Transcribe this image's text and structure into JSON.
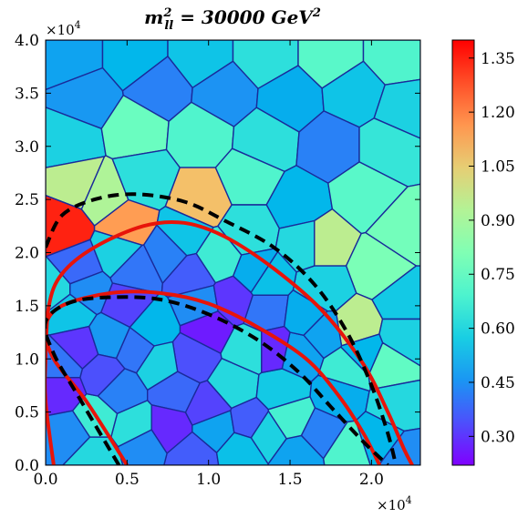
{
  "chart_data": {
    "type": "heatmap",
    "title": "m_ll^2 = 30000 GeV^2",
    "title_parts": {
      "base": "m",
      "sup": "2",
      "sub": "ll",
      "rest": " = 30000 ",
      "unit": "GeV",
      "unit_sup": "2"
    },
    "x_axis": {
      "range": [
        0.0,
        2.3
      ],
      "ticks": [
        0.0,
        0.5,
        1.0,
        1.5,
        2.0
      ],
      "tick_labels": [
        "0.0",
        "0.5",
        "1.0",
        "1.5",
        "2.0"
      ],
      "multiplier": "×10",
      "multiplier_exp": "4"
    },
    "y_axis": {
      "range": [
        0.0,
        4.0
      ],
      "ticks": [
        0.0,
        0.5,
        1.0,
        1.5,
        2.0,
        2.5,
        3.0,
        3.5,
        4.0
      ],
      "tick_labels": [
        "0.0",
        "0.5",
        "1.0",
        "1.5",
        "2.0",
        "2.5",
        "3.0",
        "3.5",
        "4.0"
      ],
      "multiplier": "×10",
      "multiplier_exp": "4"
    },
    "colorbar": {
      "range": [
        0.22,
        1.4
      ],
      "ticks": [
        0.3,
        0.45,
        0.6,
        0.75,
        0.9,
        1.05,
        1.2,
        1.35
      ],
      "tick_labels": [
        "0.30",
        "0.45",
        "0.60",
        "0.75",
        "0.90",
        "1.05",
        "1.20",
        "1.35"
      ],
      "colormap": "rainbow"
    },
    "cells": [
      {
        "x": 0.15,
        "y": 3.85,
        "v": 0.48
      },
      {
        "x": 0.55,
        "y": 3.85,
        "v": 0.52
      },
      {
        "x": 0.95,
        "y": 3.85,
        "v": 0.55
      },
      {
        "x": 1.35,
        "y": 3.85,
        "v": 0.62
      },
      {
        "x": 1.75,
        "y": 3.85,
        "v": 0.72
      },
      {
        "x": 2.15,
        "y": 3.85,
        "v": 0.7
      },
      {
        "x": 0.25,
        "y": 3.45,
        "v": 0.46
      },
      {
        "x": 0.7,
        "y": 3.55,
        "v": 0.42
      },
      {
        "x": 1.1,
        "y": 3.5,
        "v": 0.45
      },
      {
        "x": 1.5,
        "y": 3.45,
        "v": 0.5
      },
      {
        "x": 1.9,
        "y": 3.5,
        "v": 0.55
      },
      {
        "x": 2.2,
        "y": 3.35,
        "v": 0.58
      },
      {
        "x": 0.15,
        "y": 3.05,
        "v": 0.58
      },
      {
        "x": 0.55,
        "y": 3.15,
        "v": 0.76
      },
      {
        "x": 0.95,
        "y": 3.1,
        "v": 0.7
      },
      {
        "x": 1.35,
        "y": 3.05,
        "v": 0.62
      },
      {
        "x": 1.75,
        "y": 3.0,
        "v": 0.42
      },
      {
        "x": 2.1,
        "y": 3.0,
        "v": 0.64
      },
      {
        "x": 0.2,
        "y": 2.65,
        "v": 0.95
      },
      {
        "x": 0.6,
        "y": 2.7,
        "v": 0.62
      },
      {
        "x": 0.95,
        "y": 2.5,
        "v": 1.08
      },
      {
        "x": 1.25,
        "y": 2.7,
        "v": 0.7
      },
      {
        "x": 1.55,
        "y": 2.45,
        "v": 0.52
      },
      {
        "x": 1.95,
        "y": 2.55,
        "v": 0.72
      },
      {
        "x": 2.2,
        "y": 2.2,
        "v": 0.78
      },
      {
        "x": 0.1,
        "y": 2.25,
        "v": 1.35
      },
      {
        "x": 0.5,
        "y": 2.25,
        "v": 1.15
      },
      {
        "x": 0.85,
        "y": 2.15,
        "v": 0.55
      },
      {
        "x": 1.25,
        "y": 2.2,
        "v": 0.62
      },
      {
        "x": 1.6,
        "y": 2.1,
        "v": 0.6
      },
      {
        "x": 1.7,
        "y": 2.1,
        "v": 0.95
      },
      {
        "x": 2.05,
        "y": 1.85,
        "v": 0.8
      },
      {
        "x": 0.2,
        "y": 1.85,
        "v": 0.38
      },
      {
        "x": 0.55,
        "y": 1.85,
        "v": 0.4
      },
      {
        "x": 0.9,
        "y": 1.8,
        "v": 0.36
      },
      {
        "x": 1.3,
        "y": 1.8,
        "v": 0.5
      },
      {
        "x": 1.7,
        "y": 1.65,
        "v": 0.58
      },
      {
        "x": 2.2,
        "y": 1.55,
        "v": 0.56
      },
      {
        "x": 0.15,
        "y": 1.45,
        "v": 0.55
      },
      {
        "x": 0.5,
        "y": 1.5,
        "v": 0.32
      },
      {
        "x": 0.95,
        "y": 1.5,
        "v": 0.44
      },
      {
        "x": 1.35,
        "y": 1.45,
        "v": 0.4
      },
      {
        "x": 1.9,
        "y": 1.3,
        "v": 0.95
      },
      {
        "x": 2.2,
        "y": 1.2,
        "v": 0.58
      },
      {
        "x": 0.2,
        "y": 1.1,
        "v": 0.3
      },
      {
        "x": 0.55,
        "y": 1.1,
        "v": 0.4
      },
      {
        "x": 0.9,
        "y": 1.0,
        "v": 0.34
      },
      {
        "x": 1.25,
        "y": 1.1,
        "v": 0.62
      },
      {
        "x": 1.55,
        "y": 1.05,
        "v": 0.48
      },
      {
        "x": 2.1,
        "y": 0.95,
        "v": 0.74
      },
      {
        "x": 0.1,
        "y": 0.7,
        "v": 0.28
      },
      {
        "x": 0.45,
        "y": 0.7,
        "v": 0.42
      },
      {
        "x": 0.8,
        "y": 0.7,
        "v": 0.38
      },
      {
        "x": 1.15,
        "y": 0.75,
        "v": 0.6
      },
      {
        "x": 1.45,
        "y": 0.7,
        "v": 0.56
      },
      {
        "x": 1.8,
        "y": 0.65,
        "v": 0.5
      },
      {
        "x": 2.15,
        "y": 0.55,
        "v": 0.6
      },
      {
        "x": 0.15,
        "y": 0.3,
        "v": 0.44
      },
      {
        "x": 0.55,
        "y": 0.35,
        "v": 0.62
      },
      {
        "x": 0.75,
        "y": 0.35,
        "v": 0.28
      },
      {
        "x": 1.05,
        "y": 0.35,
        "v": 0.48
      },
      {
        "x": 1.35,
        "y": 0.3,
        "v": 0.58
      },
      {
        "x": 1.7,
        "y": 0.3,
        "v": 0.42
      },
      {
        "x": 2.05,
        "y": 0.25,
        "v": 0.52
      },
      {
        "x": 0.3,
        "y": 0.08,
        "v": 0.6
      },
      {
        "x": 0.9,
        "y": 0.08,
        "v": 0.36
      },
      {
        "x": 1.55,
        "y": 0.08,
        "v": 0.48
      },
      {
        "x": 2.2,
        "y": 0.08,
        "v": 0.44
      },
      {
        "x": 0.35,
        "y": 2.55,
        "v": 0.92
      },
      {
        "x": 1.0,
        "y": 1.3,
        "v": 0.26
      },
      {
        "x": 1.25,
        "y": 0.4,
        "v": 0.36
      },
      {
        "x": 0.4,
        "y": 1.2,
        "v": 0.46
      },
      {
        "x": 0.65,
        "y": 1.3,
        "v": 0.52
      },
      {
        "x": 1.6,
        "y": 1.4,
        "v": 0.5
      },
      {
        "x": 1.85,
        "y": 0.9,
        "v": 0.66
      },
      {
        "x": 0.05,
        "y": 1.65,
        "v": 0.6
      },
      {
        "x": 0.3,
        "y": 0.45,
        "v": 0.66
      },
      {
        "x": 1.4,
        "y": 1.1,
        "v": 0.28
      },
      {
        "x": 0.7,
        "y": 0.95,
        "v": 0.58
      },
      {
        "x": 1.95,
        "y": 1.05,
        "v": 0.52
      },
      {
        "x": 1.0,
        "y": 0.55,
        "v": 0.32
      },
      {
        "x": 1.15,
        "y": 1.55,
        "v": 0.3
      },
      {
        "x": 0.25,
        "y": 1.65,
        "v": 0.44
      },
      {
        "x": 1.5,
        "y": 0.45,
        "v": 0.68
      },
      {
        "x": 0.45,
        "y": 2.0,
        "v": 0.58
      },
      {
        "x": 0.75,
        "y": 2.0,
        "v": 0.42
      },
      {
        "x": 1.05,
        "y": 1.95,
        "v": 0.66
      },
      {
        "x": 0.6,
        "y": 0.2,
        "v": 0.44
      },
      {
        "x": 1.2,
        "y": 0.15,
        "v": 0.54
      },
      {
        "x": 1.85,
        "y": 0.15,
        "v": 0.7
      },
      {
        "x": 0.1,
        "y": 0.95,
        "v": 0.4
      },
      {
        "x": 0.35,
        "y": 0.85,
        "v": 0.34
      },
      {
        "x": 1.7,
        "y": 1.25,
        "v": 0.48
      },
      {
        "x": 1.35,
        "y": 1.75,
        "v": 0.54
      }
    ],
    "series": [
      {
        "style": "solid",
        "color": "#e8140a",
        "points": [
          [
            0.05,
            0.0
          ],
          [
            0.0,
            0.6
          ],
          [
            0.0,
            1.0
          ],
          [
            0.02,
            1.5
          ],
          [
            0.1,
            1.8
          ],
          [
            0.3,
            2.05
          ],
          [
            0.6,
            2.25
          ],
          [
            0.85,
            2.28
          ],
          [
            1.1,
            2.15
          ],
          [
            1.4,
            1.85
          ],
          [
            1.7,
            1.45
          ],
          [
            1.95,
            0.95
          ],
          [
            2.1,
            0.5
          ],
          [
            2.2,
            0.15
          ],
          [
            2.25,
            0.0
          ]
        ]
      },
      {
        "style": "solid",
        "color": "#e8140a",
        "points": [
          [
            0.5,
            0.0
          ],
          [
            0.25,
            0.6
          ],
          [
            0.05,
            1.0
          ],
          [
            0.0,
            1.3
          ],
          [
            0.1,
            1.5
          ],
          [
            0.4,
            1.62
          ],
          [
            0.7,
            1.62
          ],
          [
            1.0,
            1.52
          ],
          [
            1.3,
            1.3
          ],
          [
            1.6,
            1.0
          ],
          [
            1.8,
            0.65
          ],
          [
            1.95,
            0.3
          ],
          [
            2.05,
            0.0
          ]
        ]
      },
      {
        "style": "dashed",
        "color": "#000000",
        "points": [
          [
            0.0,
            2.05
          ],
          [
            0.1,
            2.35
          ],
          [
            0.3,
            2.5
          ],
          [
            0.55,
            2.55
          ],
          [
            0.85,
            2.48
          ],
          [
            1.1,
            2.3
          ],
          [
            1.4,
            2.05
          ],
          [
            1.65,
            1.7
          ],
          [
            1.85,
            1.25
          ],
          [
            2.0,
            0.75
          ],
          [
            2.1,
            0.3
          ],
          [
            2.15,
            0.0
          ]
        ]
      },
      {
        "style": "dashed",
        "color": "#000000",
        "points": [
          [
            0.45,
            0.0
          ],
          [
            0.2,
            0.65
          ],
          [
            0.05,
            1.05
          ],
          [
            0.0,
            1.35
          ],
          [
            0.15,
            1.53
          ],
          [
            0.4,
            1.58
          ],
          [
            0.7,
            1.56
          ],
          [
            1.0,
            1.42
          ],
          [
            1.3,
            1.18
          ],
          [
            1.55,
            0.88
          ],
          [
            1.75,
            0.55
          ],
          [
            1.95,
            0.22
          ],
          [
            2.1,
            0.0
          ]
        ]
      }
    ]
  }
}
